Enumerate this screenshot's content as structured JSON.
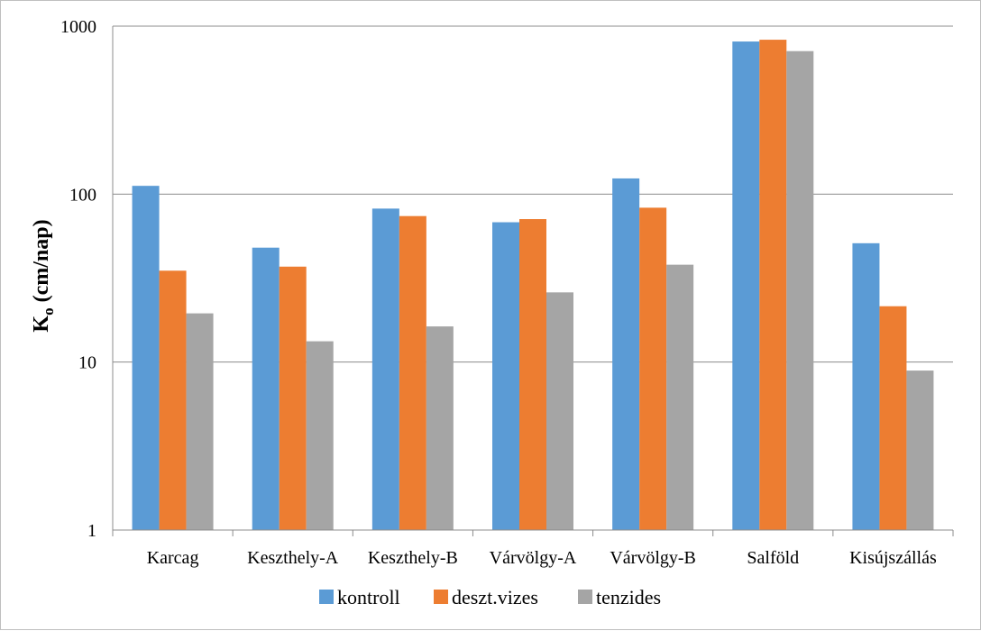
{
  "chart_data": {
    "type": "bar",
    "ylabel": "K",
    "ylabel_sub": "o",
    "ylabel_unit": " (cm/nap)",
    "yscale": "log",
    "ylim": [
      1,
      1000
    ],
    "yticks": [
      1,
      10,
      100,
      1000
    ],
    "ytick_labels": [
      "1",
      "10",
      "100",
      "1000"
    ],
    "grid": true,
    "legend_position": "bottom",
    "categories": [
      "Karcag",
      "Keszthely-A",
      "Keszthely-B",
      "Várvölgy-A",
      "Várvölgy-B",
      "Salföld",
      "Kisújszállás"
    ],
    "series": [
      {
        "name": "kontroll",
        "color": "#5b9bd5",
        "values": [
          112,
          48,
          82,
          68,
          124,
          810,
          51
        ]
      },
      {
        "name": "deszt.vizes",
        "color": "#ed7d31",
        "values": [
          35,
          37,
          74,
          71,
          83,
          830,
          21.5
        ]
      },
      {
        "name": "tenzides",
        "color": "#a5a5a5",
        "values": [
          19.5,
          13.3,
          16.3,
          26,
          38,
          710,
          8.9
        ]
      }
    ]
  }
}
